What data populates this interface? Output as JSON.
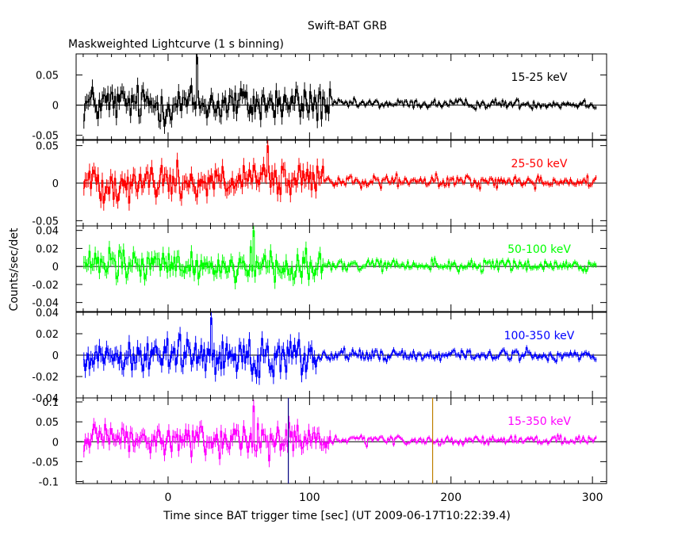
{
  "chart_data": {
    "type": "line",
    "title": "Swift-BAT GRB",
    "subtitle": "Maskweighted Lightcurve (1 s binning)",
    "xlabel": "Time since BAT trigger time [sec] (UT 2009-06-17T10:22:39.4)",
    "ylabel": "Counts/sec/det",
    "xlim": [
      -65,
      310
    ],
    "x_ticks": [
      0,
      100,
      200,
      300
    ],
    "x_tick_labels": [
      "0",
      "100",
      "200",
      "300"
    ],
    "x_data_range": [
      -60,
      302
    ],
    "grid": false,
    "background_subtracted_reference_line": 0,
    "vertical_markers": [
      {
        "x": 85,
        "color": "#000080"
      },
      {
        "x": 187,
        "color": "#c08000"
      }
    ],
    "panels": [
      {
        "band": "15-25 keV",
        "color": "#000000",
        "ylim": [
          -0.057,
          0.085
        ],
        "y_ticks": [
          -0.05,
          0,
          0.05
        ],
        "y_tick_labels": [
          "-0.05",
          "0",
          "0.05"
        ],
        "series_stats": {
          "early_amplitude": 0.028,
          "late_amplitude": 0.007,
          "transition_x": 115,
          "mean": 0.002,
          "peak_x": 20,
          "peak_y": 0.08
        }
      },
      {
        "band": "25-50 keV",
        "color": "#ff0000",
        "ylim": [
          -0.057,
          0.057
        ],
        "y_ticks": [
          -0.05,
          0,
          0.05
        ],
        "y_tick_labels": [
          "-0.05",
          "0",
          "0.05"
        ],
        "series_stats": {
          "early_amplitude": 0.022,
          "late_amplitude": 0.007,
          "transition_x": 110,
          "mean": 0.002,
          "peak_x": 70,
          "peak_y": 0.05
        }
      },
      {
        "band": "50-100 keV",
        "color": "#00ff00",
        "ylim": [
          -0.05,
          0.045
        ],
        "y_ticks": [
          -0.04,
          -0.02,
          0,
          0.02,
          0.04
        ],
        "y_tick_labels": [
          "-0.04",
          "-0.02",
          "0",
          "0.02",
          "0.04"
        ],
        "series_stats": {
          "early_amplitude": 0.016,
          "late_amplitude": 0.006,
          "transition_x": 110,
          "mean": 0.001,
          "peak_x": 60,
          "peak_y": 0.04
        }
      },
      {
        "band": "100-350 keV",
        "color": "#0000ff",
        "ylim": [
          -0.04,
          0.04
        ],
        "y_ticks": [
          -0.04,
          -0.02,
          0,
          0.02,
          0.04
        ],
        "y_tick_labels": [
          "-0.04",
          "-0.02",
          "0",
          "0.02",
          "0.04"
        ],
        "series_stats": {
          "early_amplitude": 0.015,
          "late_amplitude": 0.005,
          "transition_x": 105,
          "mean": 0.0,
          "peak_x": 30,
          "peak_y": 0.035
        }
      },
      {
        "band": "15-350 keV",
        "color": "#ff00ff",
        "ylim": [
          -0.105,
          0.11
        ],
        "y_ticks": [
          -0.1,
          -0.05,
          0,
          0.05,
          0.1
        ],
        "y_tick_labels": [
          "-0.1",
          "-0.05",
          "0",
          "0.05",
          "0.1"
        ],
        "series_stats": {
          "early_amplitude": 0.035,
          "late_amplitude": 0.01,
          "transition_x": 115,
          "mean": 0.003,
          "peak_x": 60,
          "peak_y": 0.09
        }
      }
    ]
  }
}
